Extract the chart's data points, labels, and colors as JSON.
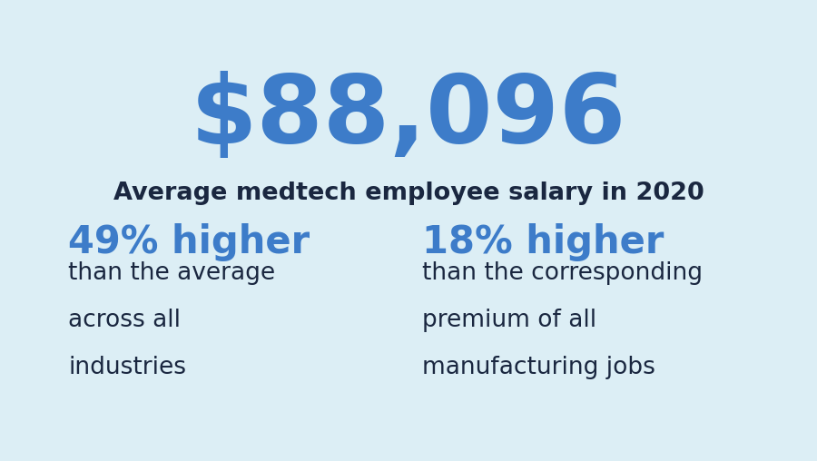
{
  "background_color": "#dceef5",
  "main_value": "$88,096",
  "main_value_color": "#3d7cc9",
  "main_value_fontsize": 76,
  "subtitle": "Average medtech employee salary in 2020",
  "subtitle_color": "#1a2740",
  "subtitle_fontsize": 19.5,
  "stat1_highlight": "49% higher",
  "stat1_highlight_color": "#3d7cc9",
  "stat1_highlight_fontsize": 30,
  "stat1_lines": [
    "than the average",
    "across all",
    "industries"
  ],
  "stat2_highlight": "18% higher",
  "stat2_highlight_color": "#3d7cc9",
  "stat2_highlight_fontsize": 30,
  "stat2_lines": [
    "than the corresponding",
    "premium of all",
    "manufacturing jobs"
  ],
  "body_color": "#1a2740",
  "body_fontsize": 19,
  "fig_width": 9.0,
  "fig_height": 5.08,
  "dpi": 100
}
